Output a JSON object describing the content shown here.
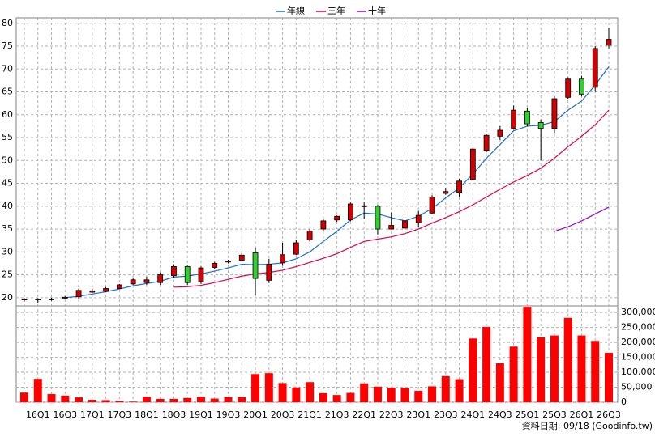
{
  "chart_data": {
    "type": "candlestick",
    "categories": [
      null,
      "16Q1",
      null,
      "16Q3",
      null,
      "17Q1",
      null,
      "17Q3",
      null,
      "18Q1",
      null,
      "18Q3",
      null,
      "19Q1",
      null,
      "19Q3",
      null,
      "20Q1",
      null,
      "20Q3",
      null,
      "21Q1",
      null,
      "21Q3",
      null,
      "22Q1",
      null,
      "22Q3",
      null,
      "23Q1",
      null,
      "23Q3",
      null,
      "24Q1",
      null,
      "24Q3",
      null,
      "25Q1",
      null,
      "25Q3",
      null,
      "26Q1",
      null,
      "26Q3"
    ],
    "open": [
      19.5,
      19.6,
      19.6,
      19.9,
      20.2,
      21.2,
      21.4,
      22,
      23,
      23.3,
      23.3,
      24.8,
      26.8,
      23.5,
      26.6,
      27.8,
      28.2,
      29.8,
      23.8,
      27.6,
      29.5,
      32.6,
      35,
      37,
      37,
      39.9,
      40,
      35,
      35.2,
      36.4,
      38.5,
      42.8,
      43,
      45.8,
      52.2,
      55.3,
      57,
      60.8,
      58.3,
      57,
      63.8,
      67.8,
      66,
      75.2
    ],
    "high": [
      19.9,
      19.9,
      20,
      20.3,
      22,
      22,
      22.3,
      23,
      24.2,
      24.6,
      25.5,
      27.3,
      27,
      26.8,
      27.8,
      28.3,
      29.8,
      31,
      28.5,
      32,
      32.6,
      35,
      37.2,
      38,
      40.8,
      40.8,
      40.3,
      38.6,
      38,
      39,
      42.4,
      44,
      46,
      52.8,
      55.8,
      57.5,
      62,
      61.5,
      59,
      64,
      68.2,
      68.5,
      75,
      79
    ],
    "low": [
      19.2,
      18.9,
      19.3,
      19.8,
      19.8,
      21,
      21.2,
      21.9,
      22.8,
      22.8,
      22.8,
      24.4,
      22.8,
      23,
      26.3,
      27.5,
      27.9,
      20.5,
      23.2,
      27,
      29.3,
      32.3,
      34.6,
      36.6,
      36.7,
      37.3,
      33.8,
      34.9,
      34.8,
      35.5,
      38.2,
      42.5,
      42,
      45.5,
      51.8,
      54.5,
      56.8,
      57.5,
      50,
      56,
      63.5,
      64,
      65,
      74.5
    ],
    "close": [
      19.7,
      19.7,
      19.7,
      20.1,
      21.6,
      21.5,
      22,
      22.8,
      23.9,
      23.9,
      25,
      26.8,
      23.3,
      26.5,
      27.5,
      28,
      29.3,
      24.2,
      27.3,
      29.4,
      32,
      34.6,
      36.8,
      37.8,
      40.5,
      40.1,
      35,
      35.8,
      36.8,
      38,
      42,
      43.2,
      45.5,
      52.5,
      55.5,
      56.6,
      61,
      58,
      57,
      63.5,
      67.8,
      64.5,
      74.5,
      76.5
    ],
    "up_color": "#d40000",
    "down_color": "#33cc33",
    "series": [
      {
        "name": "年線",
        "color": "#1a6fd1",
        "values": [
          null,
          null,
          null,
          20,
          20.3,
          20.8,
          21.3,
          21.9,
          22.6,
          23.1,
          23.6,
          24.5,
          24.7,
          25.2,
          25.8,
          26.5,
          27.3,
          27.2,
          27.3,
          27.6,
          28.5,
          30,
          32.3,
          34.5,
          37,
          38.5,
          38.3,
          37.5,
          36.8,
          37.8,
          39.5,
          41.8,
          44,
          47,
          50.5,
          53.5,
          56.5,
          57.5,
          57.7,
          58.5,
          61,
          63,
          66.5,
          70.5
        ]
      },
      {
        "name": "三年",
        "color": "#e0004c",
        "values": [
          null,
          null,
          null,
          null,
          null,
          null,
          null,
          null,
          null,
          null,
          null,
          22.3,
          22.4,
          22.7,
          23.3,
          24,
          24.7,
          25.2,
          25.5,
          26,
          26.8,
          27.7,
          28.6,
          29.6,
          31,
          32.3,
          32.8,
          33.3,
          34,
          35,
          36.3,
          37.5,
          38.8,
          40.3,
          42,
          43.7,
          45.3,
          46.7,
          48.3,
          50.5,
          53,
          55.3,
          57.8,
          61
        ]
      },
      {
        "name": "十年",
        "color": "#9900cc",
        "values": [
          null,
          null,
          null,
          null,
          null,
          null,
          null,
          null,
          null,
          null,
          null,
          null,
          null,
          null,
          null,
          null,
          null,
          null,
          null,
          null,
          null,
          null,
          null,
          null,
          null,
          null,
          null,
          null,
          null,
          null,
          null,
          null,
          null,
          null,
          null,
          null,
          null,
          null,
          null,
          34.5,
          35.5,
          36.8,
          38.3,
          39.8
        ]
      }
    ],
    "ylim": [
      18.2,
      81.2
    ],
    "yticks": [
      20,
      25,
      30,
      35,
      40,
      45,
      50,
      55,
      60,
      65,
      70,
      75,
      80
    ],
    "grid": true,
    "volume": {
      "color": "#ff0000",
      "values": [
        32000,
        78000,
        27000,
        22000,
        16000,
        8000,
        7000,
        4000,
        2000,
        18000,
        11000,
        11000,
        14000,
        18000,
        12000,
        17000,
        17000,
        94000,
        97000,
        64000,
        49000,
        67000,
        30000,
        24000,
        31000,
        63000,
        52000,
        48000,
        47000,
        38000,
        53000,
        87000,
        77000,
        213000,
        252000,
        130000,
        186000,
        319000,
        217000,
        223000,
        282000,
        223000,
        205000,
        165000
      ],
      "ylim": [
        0,
        322000
      ],
      "yticks": [
        0,
        {
          "value": 50000,
          "label": "50,000"
        },
        {
          "value": 100000,
          "label": "100,000"
        },
        {
          "value": 150000,
          "label": "150,000"
        },
        {
          "value": 200000,
          "label": "200,000"
        },
        {
          "value": 250000,
          "label": "250,000"
        },
        {
          "value": 300000,
          "label": "300,000"
        }
      ]
    },
    "footer": "資料日期: 09/18 (Goodinfo.tw)"
  }
}
